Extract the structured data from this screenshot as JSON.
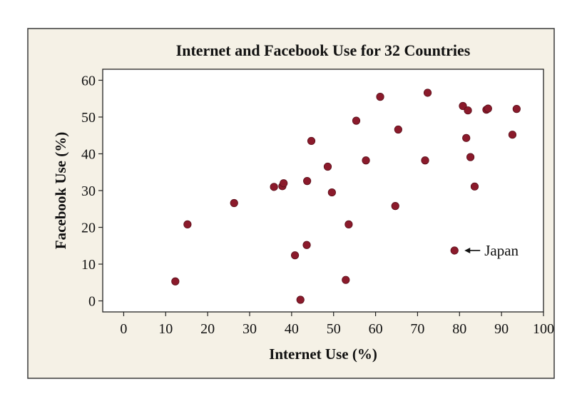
{
  "colors": {
    "outer_background": "#f5f1e6",
    "outer_border": "#3a3a3a",
    "plot_background": "#ffffff",
    "point": "#8b1a2b",
    "point_stroke": "#5a0f1a",
    "text": "#111111"
  },
  "chart_data": {
    "type": "scatter",
    "title": "Internet and Facebook Use for 32 Countries",
    "xlabel": "Internet Use (%)",
    "ylabel": "Facebook Use (%)",
    "xlim": [
      -5,
      100
    ],
    "ylim": [
      -3,
      63
    ],
    "xticks": [
      0,
      10,
      20,
      30,
      40,
      50,
      60,
      70,
      80,
      90,
      100
    ],
    "yticks": [
      0,
      10,
      20,
      30,
      40,
      50,
      60
    ],
    "grid": false,
    "legend": "none",
    "points": [
      {
        "x": 12.3,
        "y": 5.3
      },
      {
        "x": 15.2,
        "y": 20.8
      },
      {
        "x": 26.3,
        "y": 26.6
      },
      {
        "x": 35.8,
        "y": 31.0
      },
      {
        "x": 37.8,
        "y": 31.2
      },
      {
        "x": 38.1,
        "y": 32.0
      },
      {
        "x": 40.8,
        "y": 12.4
      },
      {
        "x": 42.1,
        "y": 0.3
      },
      {
        "x": 43.6,
        "y": 15.2
      },
      {
        "x": 43.7,
        "y": 32.6
      },
      {
        "x": 44.7,
        "y": 43.5
      },
      {
        "x": 48.6,
        "y": 36.5
      },
      {
        "x": 49.6,
        "y": 29.5
      },
      {
        "x": 52.9,
        "y": 5.7
      },
      {
        "x": 53.6,
        "y": 20.8
      },
      {
        "x": 55.4,
        "y": 49.0
      },
      {
        "x": 57.7,
        "y": 38.2
      },
      {
        "x": 61.1,
        "y": 55.5
      },
      {
        "x": 64.7,
        "y": 25.8
      },
      {
        "x": 65.4,
        "y": 46.6
      },
      {
        "x": 71.8,
        "y": 38.2
      },
      {
        "x": 72.4,
        "y": 56.6
      },
      {
        "x": 78.8,
        "y": 13.7
      },
      {
        "x": 80.8,
        "y": 53.0
      },
      {
        "x": 81.6,
        "y": 44.3
      },
      {
        "x": 82.0,
        "y": 51.8
      },
      {
        "x": 82.6,
        "y": 39.1
      },
      {
        "x": 83.6,
        "y": 31.1
      },
      {
        "x": 86.4,
        "y": 52.0
      },
      {
        "x": 86.8,
        "y": 52.3
      },
      {
        "x": 92.6,
        "y": 45.2
      },
      {
        "x": 93.6,
        "y": 52.2
      }
    ],
    "annotations": [
      {
        "text": "Japan",
        "x": 78.8,
        "y": 13.7
      }
    ]
  }
}
